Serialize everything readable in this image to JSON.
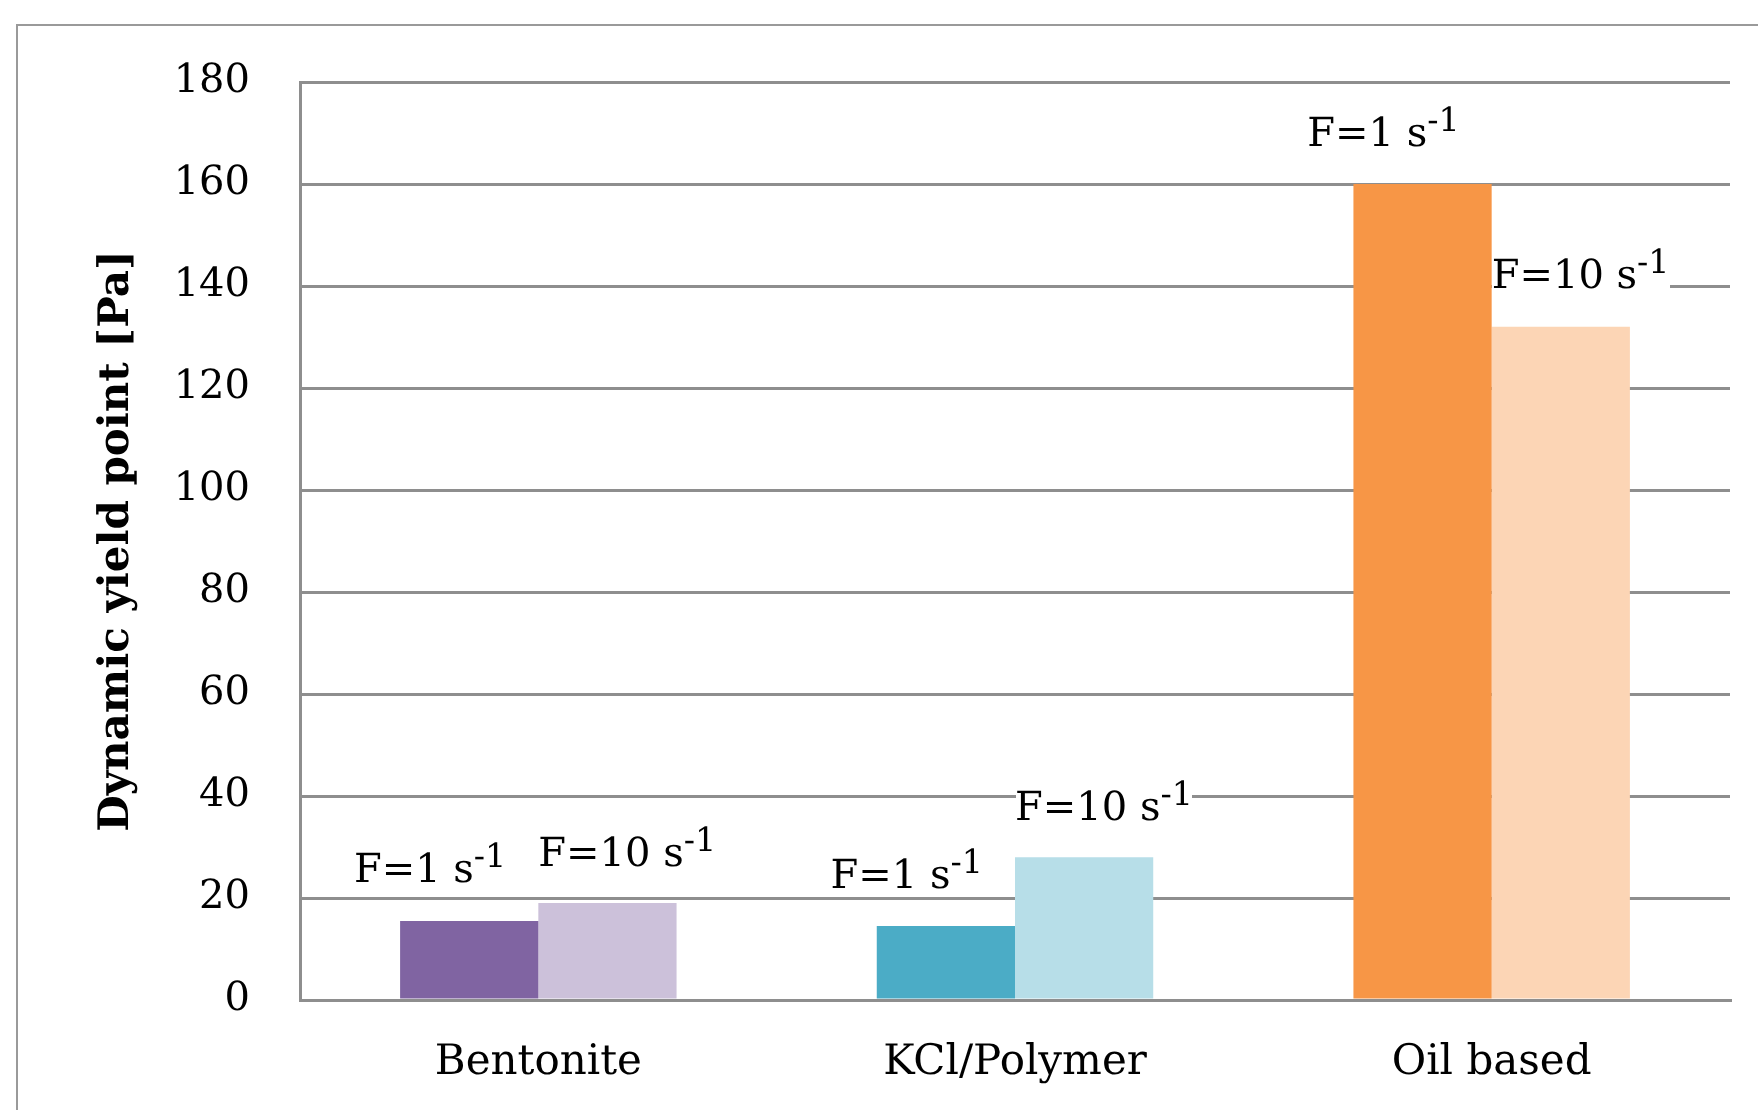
{
  "chart_data": {
    "type": "bar",
    "ylabel": "Dynamic yield point [Pa]",
    "categories": [
      "Bentonite",
      "KCl/Polymer",
      "Oil based"
    ],
    "series": [
      {
        "name": "F=1 s$^{-1}$",
        "colors": [
          "#8064a2",
          "#4bacc6",
          "#f79646"
        ],
        "values": [
          15.5,
          14.5,
          160
        ]
      },
      {
        "name": "F=10 s$^{-1}$",
        "colors": [
          "#ccc1da",
          "#b7dee8",
          "#fcd5b5"
        ],
        "values": [
          19,
          28,
          132
        ]
      }
    ],
    "ylim": [
      0,
      180
    ],
    "yticks": [
      0,
      20,
      40,
      60,
      80,
      100,
      120,
      140,
      160,
      180
    ],
    "grid": "y",
    "legend": false
  }
}
